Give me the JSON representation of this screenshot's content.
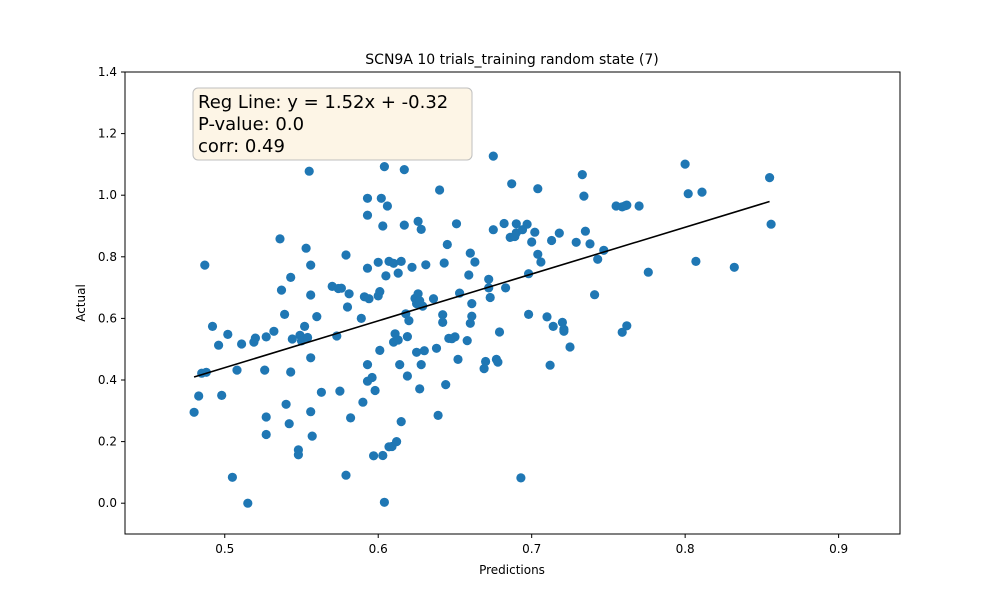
{
  "chart_data": {
    "type": "scatter",
    "title": "SCN9A 10 trials_training random state (7)",
    "xlabel": "Predictions",
    "ylabel": "Actual",
    "xlim": [
      0.435,
      0.94
    ],
    "ylim": [
      -0.1,
      1.4
    ],
    "xticks": [
      0.5,
      0.6,
      0.7,
      0.8,
      0.9
    ],
    "yticks": [
      0.0,
      0.2,
      0.4,
      0.6,
      0.8,
      1.0,
      1.2,
      1.4
    ],
    "x_tick_labels": [
      "0.5",
      "0.6",
      "0.7",
      "0.8",
      "0.9"
    ],
    "y_tick_labels": [
      "0.0",
      "0.2",
      "0.4",
      "0.6",
      "0.8",
      "1.0",
      "1.2",
      "1.4"
    ],
    "grid": false,
    "point_color": "#1f77b4",
    "line_color": "#000000",
    "annotation": {
      "lines": [
        "Reg Line: y = 1.52x + -0.32",
        "P-value: 0.0",
        "corr: 0.49"
      ],
      "placement": "top-left",
      "background": "#fdf5e6",
      "border": "#bfbfbf"
    },
    "regression": {
      "slope": 1.52,
      "intercept": -0.32,
      "x_range": [
        0.48,
        0.855
      ]
    },
    "points": [
      [
        0.48,
        0.295
      ],
      [
        0.483,
        0.348
      ],
      [
        0.485,
        0.422
      ],
      [
        0.487,
        0.773
      ],
      [
        0.488,
        0.425
      ],
      [
        0.492,
        0.574
      ],
      [
        0.496,
        0.513
      ],
      [
        0.498,
        0.35
      ],
      [
        0.502,
        0.548
      ],
      [
        0.505,
        0.084
      ],
      [
        0.508,
        0.432
      ],
      [
        0.511,
        0.517
      ],
      [
        0.515,
        0.0
      ],
      [
        0.519,
        0.523
      ],
      [
        0.52,
        0.536
      ],
      [
        0.526,
        0.432
      ],
      [
        0.527,
        0.54
      ],
      [
        0.527,
        0.28
      ],
      [
        0.527,
        0.223
      ],
      [
        0.532,
        0.558
      ],
      [
        0.536,
        0.858
      ],
      [
        0.537,
        0.692
      ],
      [
        0.539,
        0.613
      ],
      [
        0.54,
        0.321
      ],
      [
        0.542,
        0.258
      ],
      [
        0.543,
        0.426
      ],
      [
        0.543,
        0.733
      ],
      [
        0.544,
        0.533
      ],
      [
        0.548,
        0.173
      ],
      [
        0.548,
        0.157
      ],
      [
        0.549,
        0.545
      ],
      [
        0.55,
        0.527
      ],
      [
        0.552,
        0.574
      ],
      [
        0.553,
        0.828
      ],
      [
        0.554,
        0.538
      ],
      [
        0.555,
        1.078
      ],
      [
        0.556,
        0.297
      ],
      [
        0.556,
        0.472
      ],
      [
        0.556,
        0.773
      ],
      [
        0.556,
        0.676
      ],
      [
        0.557,
        0.218
      ],
      [
        0.56,
        0.606
      ],
      [
        0.563,
        0.36
      ],
      [
        0.57,
        0.704
      ],
      [
        0.573,
        0.543
      ],
      [
        0.574,
        0.697
      ],
      [
        0.575,
        0.364
      ],
      [
        0.576,
        0.698
      ],
      [
        0.579,
        0.806
      ],
      [
        0.579,
        0.091
      ],
      [
        0.58,
        0.637
      ],
      [
        0.581,
        0.68
      ],
      [
        0.582,
        0.277
      ],
      [
        0.589,
        0.6
      ],
      [
        0.59,
        0.328
      ],
      [
        0.591,
        0.67
      ],
      [
        0.593,
        0.763
      ],
      [
        0.593,
        0.45
      ],
      [
        0.593,
        0.396
      ],
      [
        0.593,
        0.935
      ],
      [
        0.593,
        0.99
      ],
      [
        0.594,
        0.664
      ],
      [
        0.596,
        0.408
      ],
      [
        0.597,
        0.154
      ],
      [
        0.598,
        0.366
      ],
      [
        0.6,
        0.782
      ],
      [
        0.6,
        0.673
      ],
      [
        0.601,
        0.687
      ],
      [
        0.601,
        0.496
      ],
      [
        0.602,
        0.99
      ],
      [
        0.603,
        0.155
      ],
      [
        0.603,
        0.9
      ],
      [
        0.604,
        0.003
      ],
      [
        0.604,
        1.093
      ],
      [
        0.605,
        0.738
      ],
      [
        0.606,
        0.965
      ],
      [
        0.607,
        0.785
      ],
      [
        0.607,
        0.183
      ],
      [
        0.609,
        0.184
      ],
      [
        0.61,
        0.523
      ],
      [
        0.61,
        0.779
      ],
      [
        0.611,
        0.55
      ],
      [
        0.612,
        0.2
      ],
      [
        0.613,
        0.747
      ],
      [
        0.613,
        0.53
      ],
      [
        0.614,
        0.45
      ],
      [
        0.615,
        0.785
      ],
      [
        0.615,
        0.265
      ],
      [
        0.617,
        1.083
      ],
      [
        0.617,
        0.903
      ],
      [
        0.618,
        0.615
      ],
      [
        0.619,
        0.413
      ],
      [
        0.619,
        0.541
      ],
      [
        0.62,
        0.593
      ],
      [
        0.622,
        0.766
      ],
      [
        0.624,
        0.665
      ],
      [
        0.625,
        0.49
      ],
      [
        0.625,
        0.648
      ],
      [
        0.626,
        0.68
      ],
      [
        0.626,
        0.915
      ],
      [
        0.627,
        0.371
      ],
      [
        0.627,
        0.657
      ],
      [
        0.628,
        0.45
      ],
      [
        0.628,
        0.889
      ],
      [
        0.629,
        0.64
      ],
      [
        0.63,
        0.495
      ],
      [
        0.631,
        0.774
      ],
      [
        0.636,
        0.664
      ],
      [
        0.638,
        0.503
      ],
      [
        0.639,
        0.285
      ],
      [
        0.64,
        1.017
      ],
      [
        0.642,
        0.587
      ],
      [
        0.642,
        0.612
      ],
      [
        0.643,
        0.78
      ],
      [
        0.644,
        0.385
      ],
      [
        0.645,
        0.84
      ],
      [
        0.646,
        0.535
      ],
      [
        0.648,
        0.534
      ],
      [
        0.65,
        0.54
      ],
      [
        0.651,
        0.907
      ],
      [
        0.652,
        0.467
      ],
      [
        0.653,
        0.682
      ],
      [
        0.658,
        0.528
      ],
      [
        0.659,
        0.741
      ],
      [
        0.66,
        0.584
      ],
      [
        0.66,
        0.812
      ],
      [
        0.661,
        0.607
      ],
      [
        0.661,
        0.648
      ],
      [
        0.663,
        0.783
      ],
      [
        0.669,
        0.437
      ],
      [
        0.67,
        0.46
      ],
      [
        0.672,
        0.699
      ],
      [
        0.672,
        0.727
      ],
      [
        0.673,
        0.668
      ],
      [
        0.675,
        1.127
      ],
      [
        0.675,
        0.888
      ],
      [
        0.677,
        0.467
      ],
      [
        0.678,
        0.458
      ],
      [
        0.679,
        0.556
      ],
      [
        0.682,
        0.908
      ],
      [
        0.683,
        0.699
      ],
      [
        0.686,
        0.863
      ],
      [
        0.687,
        1.037
      ],
      [
        0.689,
        0.866
      ],
      [
        0.69,
        0.907
      ],
      [
        0.69,
        0.878
      ],
      [
        0.693,
        0.082
      ],
      [
        0.694,
        0.888
      ],
      [
        0.697,
        0.906
      ],
      [
        0.698,
        0.613
      ],
      [
        0.698,
        0.745
      ],
      [
        0.7,
        0.848
      ],
      [
        0.702,
        0.88
      ],
      [
        0.704,
        1.021
      ],
      [
        0.704,
        0.808
      ],
      [
        0.706,
        0.783
      ],
      [
        0.71,
        0.605
      ],
      [
        0.712,
        0.448
      ],
      [
        0.713,
        0.853
      ],
      [
        0.714,
        0.574
      ],
      [
        0.718,
        0.877
      ],
      [
        0.72,
        0.587
      ],
      [
        0.721,
        0.565
      ],
      [
        0.721,
        0.558
      ],
      [
        0.725,
        0.507
      ],
      [
        0.729,
        0.847
      ],
      [
        0.733,
        1.067
      ],
      [
        0.734,
        0.997
      ],
      [
        0.735,
        0.883
      ],
      [
        0.738,
        0.842
      ],
      [
        0.741,
        0.677
      ],
      [
        0.743,
        0.792
      ],
      [
        0.747,
        0.821
      ],
      [
        0.755,
        0.965
      ],
      [
        0.759,
        0.962
      ],
      [
        0.759,
        0.555
      ],
      [
        0.761,
        0.966
      ],
      [
        0.762,
        0.576
      ],
      [
        0.762,
        0.968
      ],
      [
        0.77,
        0.965
      ],
      [
        0.776,
        0.75
      ],
      [
        0.8,
        1.101
      ],
      [
        0.802,
        1.005
      ],
      [
        0.807,
        0.785
      ],
      [
        0.811,
        1.01
      ],
      [
        0.832,
        0.766
      ],
      [
        0.855,
        1.057
      ],
      [
        0.856,
        0.906
      ]
    ]
  }
}
